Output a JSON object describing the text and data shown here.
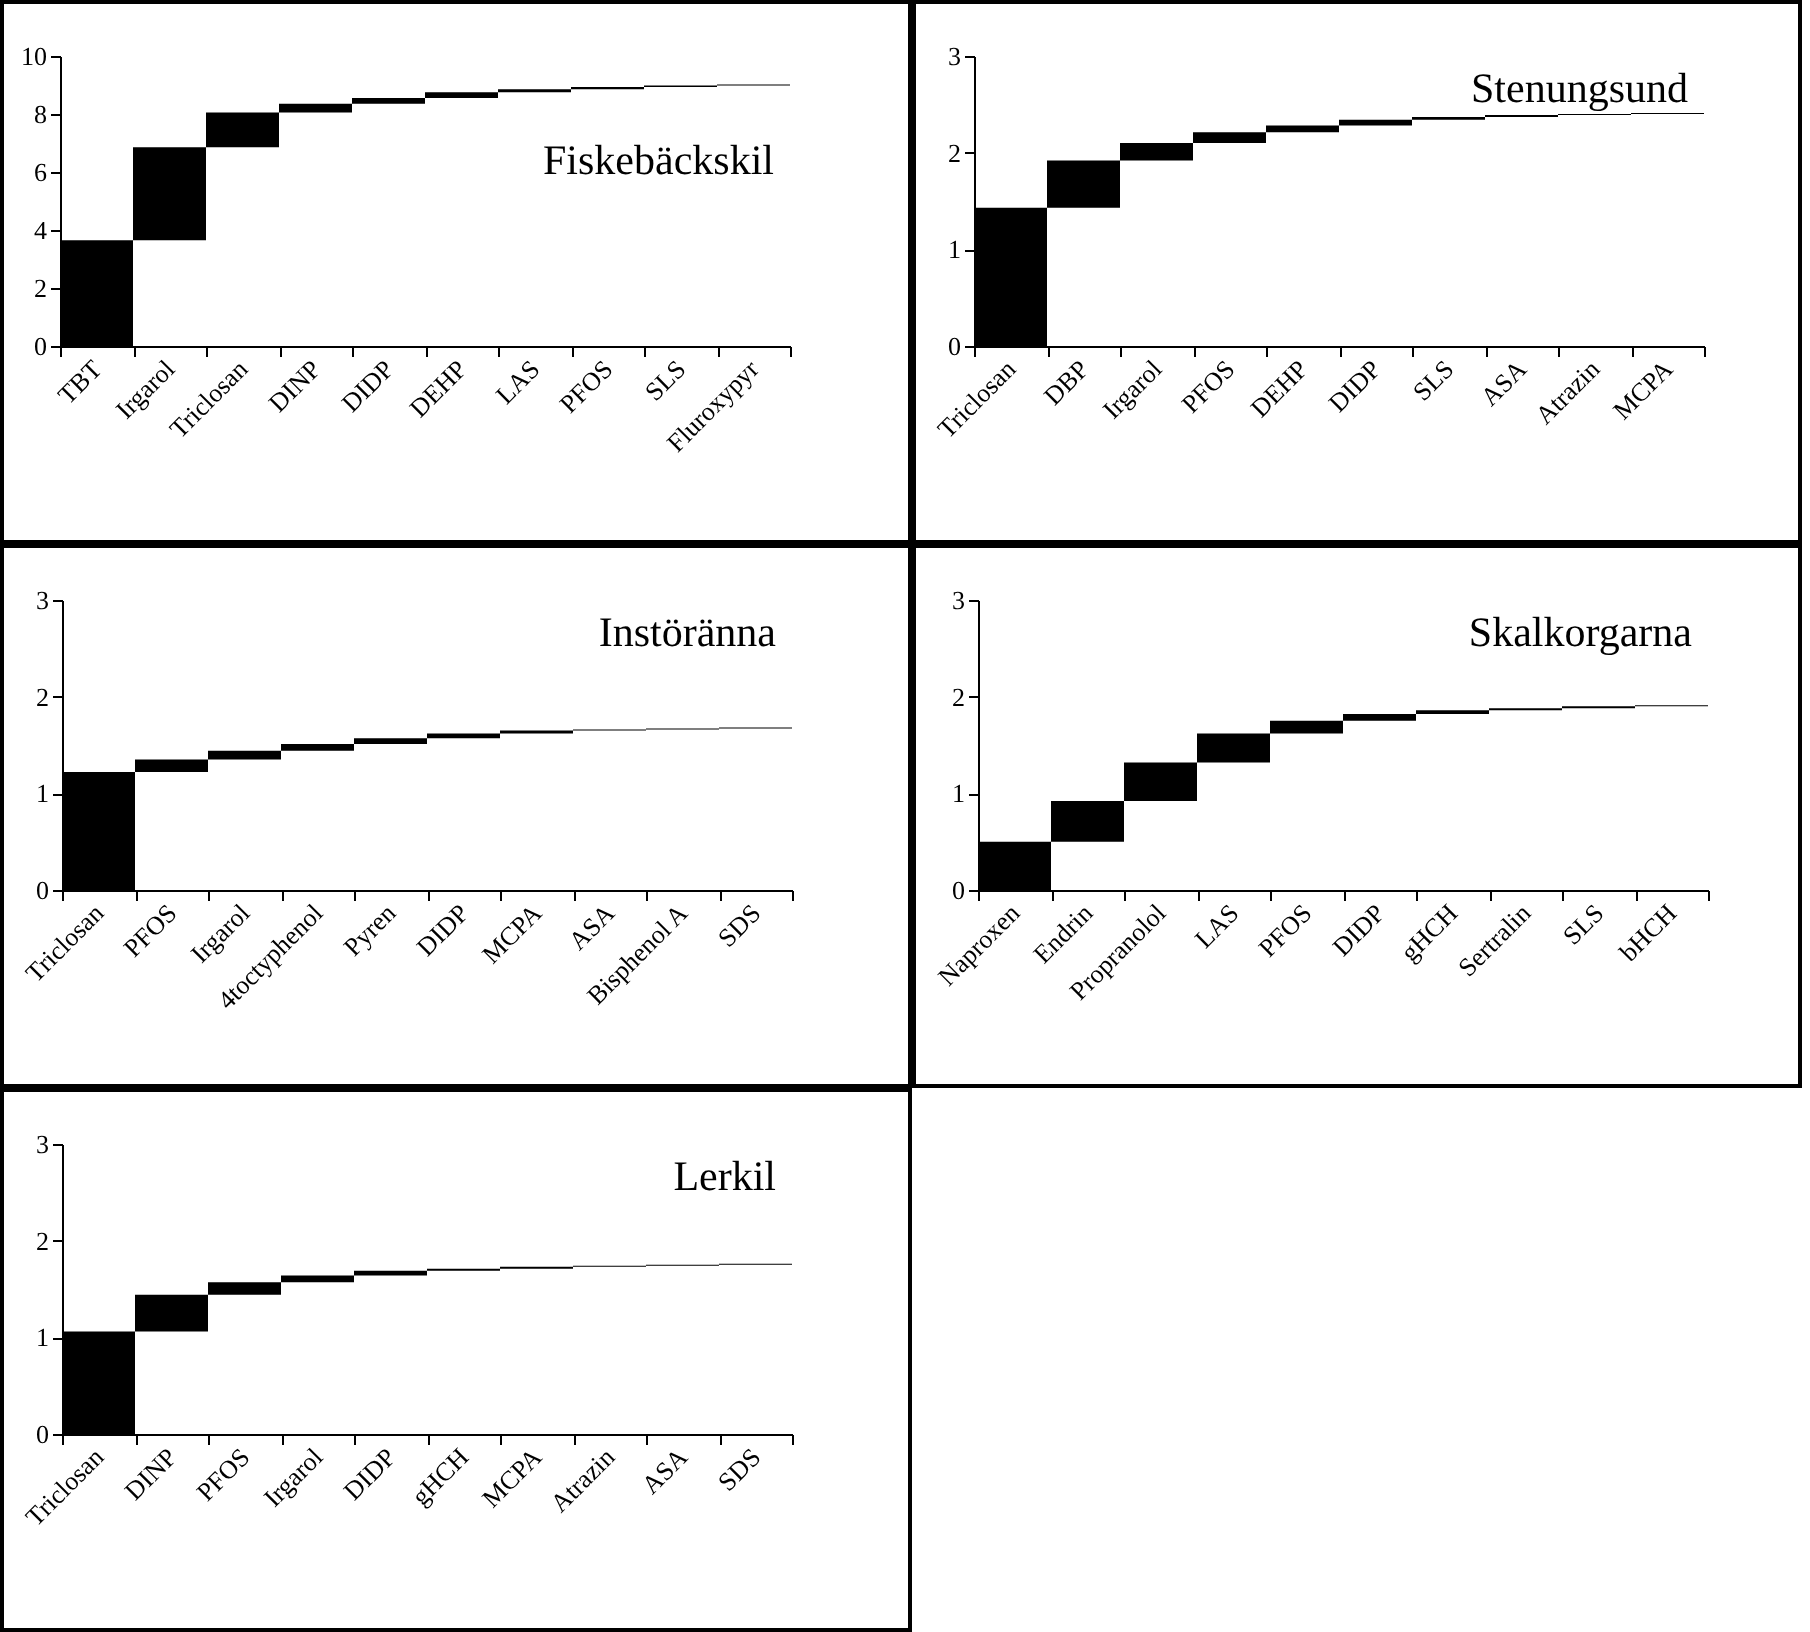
{
  "chart_data": [
    {
      "type": "bar",
      "title": "Fiskebäckskil",
      "categories": [
        "TBT",
        "Irgarol",
        "Triclosan",
        "DINP",
        "DIDP",
        "DEHP",
        "LAS",
        "PFOS",
        "SLS",
        "Fluroxypyr"
      ],
      "values": [
        3.65,
        3.2,
        1.2,
        0.3,
        0.2,
        0.2,
        0.1,
        0.08,
        0.05,
        0.04
      ],
      "base": [
        0,
        3.65,
        6.85,
        8.05,
        8.35,
        8.55,
        8.75,
        8.85,
        8.93,
        8.98
      ],
      "color": "#000000",
      "ylim": [
        0,
        10
      ],
      "yticks": [
        0,
        2,
        4,
        6,
        8,
        10
      ]
    },
    {
      "type": "bar",
      "title": "Stenungsund",
      "categories": [
        "Triclosan",
        "DBP",
        "Irgarol",
        "PFOS",
        "DEHP",
        "DIDP",
        "SLS",
        "ASA",
        "Atrazin",
        "MCPA"
      ],
      "values": [
        1.43,
        0.49,
        0.18,
        0.11,
        0.07,
        0.06,
        0.03,
        0.02,
        0.01,
        0.01
      ],
      "base": [
        0,
        1.43,
        1.92,
        2.1,
        2.21,
        2.28,
        2.34,
        2.37,
        2.39,
        2.4
      ],
      "color": "#000000",
      "ylim": [
        0,
        3
      ],
      "yticks": [
        0,
        1,
        2,
        3
      ]
    },
    {
      "type": "bar",
      "title": "Instöränna",
      "categories": [
        "Triclosan",
        "PFOS",
        "Irgarol",
        "4toctyphenol",
        "Pyren",
        "DIDP",
        "MCPA",
        "ASA",
        "Bisphenol A",
        "SDS"
      ],
      "values": [
        1.22,
        0.13,
        0.09,
        0.07,
        0.06,
        0.05,
        0.03,
        0.01,
        0.01,
        0.01
      ],
      "base": [
        0,
        1.22,
        1.35,
        1.44,
        1.51,
        1.57,
        1.62,
        1.65,
        1.66,
        1.67
      ],
      "color": "#000000",
      "ylim": [
        0,
        3
      ],
      "yticks": [
        0,
        1,
        2,
        3
      ]
    },
    {
      "type": "bar",
      "title": "Skalkorgarna",
      "categories": [
        "Naproxen",
        "Endrin",
        "Propranolol",
        "LAS",
        "PFOS",
        "DIDP",
        "gHCH",
        "Sertralin",
        "SLS",
        "bHCH"
      ],
      "values": [
        0.5,
        0.42,
        0.4,
        0.3,
        0.13,
        0.07,
        0.04,
        0.02,
        0.02,
        0.01
      ],
      "base": [
        0,
        0.5,
        0.92,
        1.32,
        1.62,
        1.75,
        1.82,
        1.86,
        1.88,
        1.9
      ],
      "color": "#000000",
      "ylim": [
        0,
        3
      ],
      "yticks": [
        0,
        1,
        2,
        3
      ]
    },
    {
      "type": "bar",
      "title": "Lerkil",
      "categories": [
        "Triclosan",
        "DINP",
        "PFOS",
        "Irgarol",
        "DIDP",
        "gHCH",
        "MCPA",
        "Atrazin",
        "ASA",
        "SDS"
      ],
      "values": [
        1.06,
        0.38,
        0.13,
        0.07,
        0.05,
        0.02,
        0.02,
        0.01,
        0.01,
        0.01
      ],
      "base": [
        0,
        1.06,
        1.44,
        1.57,
        1.64,
        1.69,
        1.71,
        1.73,
        1.74,
        1.75
      ],
      "color": "#000000",
      "ylim": [
        0,
        3
      ],
      "yticks": [
        0,
        1,
        2,
        3
      ]
    }
  ]
}
